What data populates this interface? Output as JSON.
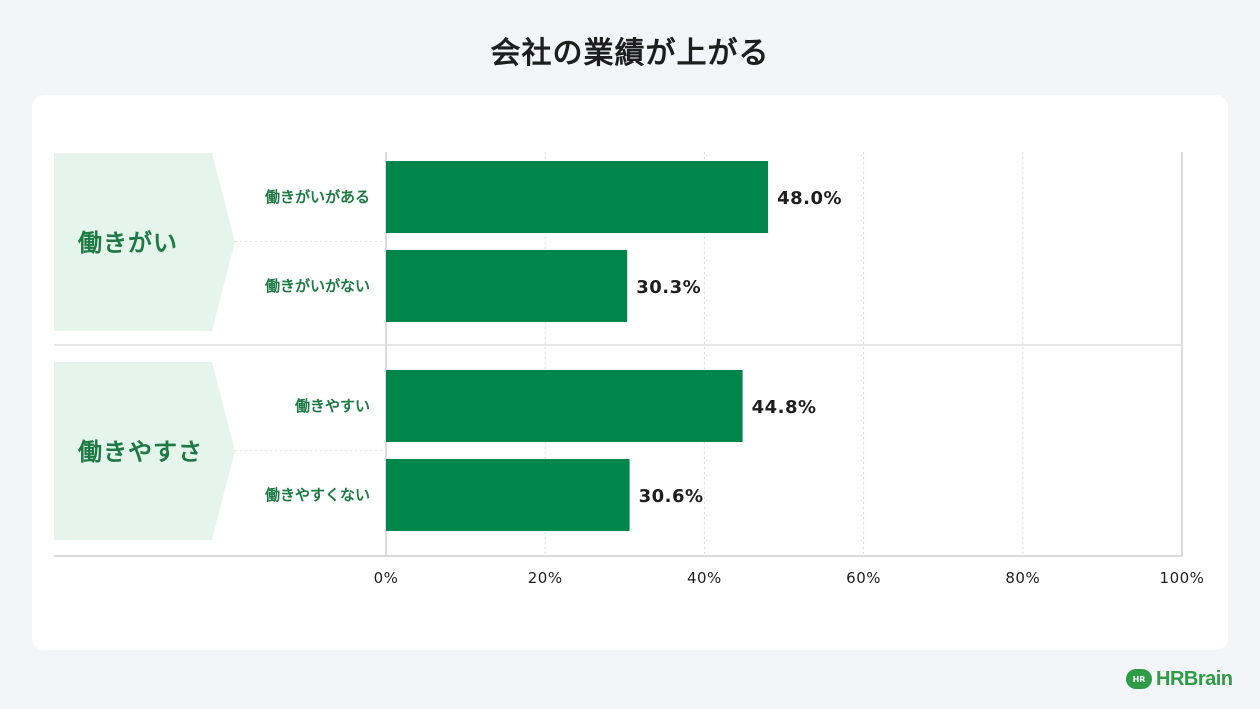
{
  "title": "会社の業績が上がる",
  "chart_data": {
    "type": "bar",
    "orientation": "horizontal",
    "groups": [
      {
        "name": "働きがい",
        "categories": [
          "働きがいがある",
          "働きがいがない"
        ],
        "values": [
          48.0,
          30.3
        ]
      },
      {
        "name": "働きやすさ",
        "categories": [
          "働きやすい",
          "働きやすくない"
        ],
        "values": [
          44.8,
          30.6
        ]
      }
    ],
    "value_labels": [
      "48.0%",
      "30.3%",
      "44.8%",
      "30.6%"
    ],
    "x_ticks": [
      "0%",
      "20%",
      "40%",
      "60%",
      "80%",
      "100%"
    ],
    "xlim": [
      0,
      100
    ],
    "grid": true,
    "colors": {
      "bar": "#00854a",
      "group_label_bg": "#e5f5ec",
      "label_text": "#1e7a45",
      "value_text": "#1e1e1e"
    }
  },
  "logo": {
    "badge": "HR",
    "text": "HRBrain"
  }
}
